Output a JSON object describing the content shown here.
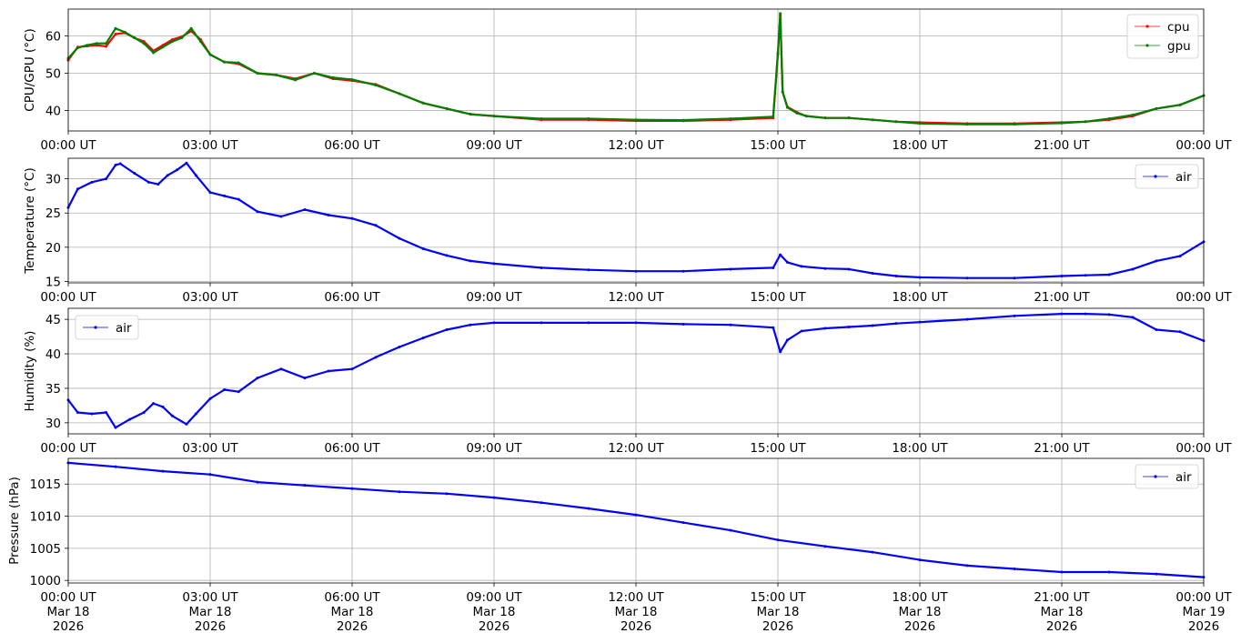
{
  "chart_data": [
    {
      "type": "line",
      "ylabel": "CPU/GPU (°C)",
      "ylim": [
        34.5,
        67.2
      ],
      "xlim": [
        "2026-03-18 00:00",
        "2026-03-19 00:00"
      ],
      "y_ticks": [
        40,
        50,
        60
      ],
      "x_tick_labels": [
        "00:00 UT",
        "03:00 UT",
        "06:00 UT",
        "09:00 UT",
        "12:00 UT",
        "15:00 UT",
        "18:00 UT",
        "21:00 UT",
        "00:00 UT"
      ],
      "grid": true,
      "legend": "top-right",
      "series": [
        {
          "name": "cpu",
          "color": "#ff0000",
          "x_hours": [
            0,
            0.2,
            0.4,
            0.6,
            0.8,
            1.0,
            1.2,
            1.4,
            1.6,
            1.8,
            2.0,
            2.2,
            2.4,
            2.6,
            2.8,
            3.0,
            3.3,
            3.6,
            4.0,
            4.4,
            4.8,
            5.2,
            5.6,
            6.0,
            6.5,
            7.0,
            7.5,
            8.0,
            8.5,
            9.0,
            10.0,
            11.0,
            12.0,
            13.0,
            14.0,
            14.9,
            15.0,
            15.05,
            15.1,
            15.2,
            15.4,
            15.6,
            16.0,
            16.5,
            17.0,
            17.5,
            18.0,
            19.0,
            20.0,
            21.0,
            21.5,
            22.0,
            22.5,
            23.0,
            23.5,
            24.0
          ],
          "values": [
            53.5,
            57,
            57.3,
            57.5,
            57.2,
            60.5,
            60.8,
            59.5,
            58.5,
            56,
            57.5,
            59,
            59.8,
            61.3,
            59,
            55,
            53,
            52.5,
            50,
            49.5,
            48.5,
            50,
            48.5,
            48,
            47,
            44.5,
            42,
            40.5,
            39,
            38.5,
            37.5,
            37.5,
            37.2,
            37.2,
            37.5,
            38,
            55,
            65.5,
            45,
            41,
            39.5,
            38.5,
            38,
            38,
            37.5,
            37,
            36.8,
            36.5,
            36.5,
            36.8,
            37,
            37.5,
            38.5,
            40.5,
            41.5,
            44
          ]
        },
        {
          "name": "gpu",
          "color": "#008000",
          "x_hours": [
            0,
            0.2,
            0.4,
            0.6,
            0.8,
            1.0,
            1.2,
            1.4,
            1.6,
            1.8,
            2.0,
            2.2,
            2.4,
            2.6,
            2.8,
            3.0,
            3.3,
            3.6,
            4.0,
            4.4,
            4.8,
            5.2,
            5.6,
            6.0,
            6.5,
            7.0,
            7.5,
            8.0,
            8.5,
            9.0,
            10.0,
            11.0,
            12.0,
            13.0,
            14.0,
            14.9,
            15.0,
            15.05,
            15.1,
            15.2,
            15.4,
            15.6,
            16.0,
            16.5,
            17.0,
            17.5,
            18.0,
            19.0,
            20.0,
            21.0,
            21.5,
            22.0,
            22.5,
            23.0,
            23.5,
            24.0
          ],
          "values": [
            54,
            56.8,
            57.5,
            58,
            58,
            62,
            61,
            59.5,
            58,
            55.5,
            57,
            58.5,
            59.5,
            62,
            58.5,
            55,
            53,
            52.8,
            50,
            49.5,
            48.2,
            50,
            48.8,
            48.3,
            46.8,
            44.5,
            42,
            40.5,
            39,
            38.5,
            37.8,
            37.8,
            37.5,
            37.4,
            37.8,
            38.3,
            55.5,
            66,
            45,
            40.8,
            39.3,
            38.5,
            38,
            38,
            37.5,
            37,
            36.5,
            36.3,
            36.3,
            36.6,
            37,
            37.8,
            38.8,
            40.5,
            41.5,
            44
          ]
        }
      ]
    },
    {
      "type": "line",
      "ylabel": "Temperature (°C)",
      "ylim": [
        14.8,
        33.0
      ],
      "xlim": [
        "2026-03-18 00:00",
        "2026-03-19 00:00"
      ],
      "y_ticks": [
        15,
        20,
        25,
        30
      ],
      "x_tick_labels": [
        "00:00 UT",
        "03:00 UT",
        "06:00 UT",
        "09:00 UT",
        "12:00 UT",
        "15:00 UT",
        "18:00 UT",
        "21:00 UT",
        "00:00 UT"
      ],
      "grid": true,
      "legend": "top-right",
      "series": [
        {
          "name": "air",
          "color": "#0000ff",
          "x_hours": [
            0,
            0.2,
            0.5,
            0.8,
            1.0,
            1.1,
            1.4,
            1.7,
            1.9,
            2.1,
            2.3,
            2.5,
            2.7,
            3.0,
            3.3,
            3.6,
            4.0,
            4.5,
            5.0,
            5.5,
            6.0,
            6.5,
            7.0,
            7.5,
            8.0,
            8.5,
            9.0,
            10.0,
            11.0,
            12.0,
            13.0,
            14.0,
            14.9,
            15.05,
            15.2,
            15.5,
            16.0,
            16.5,
            17.0,
            17.5,
            18.0,
            19.0,
            20.0,
            21.0,
            21.5,
            22.0,
            22.5,
            23.0,
            23.5,
            24.0
          ],
          "values": [
            25.8,
            28.5,
            29.5,
            30,
            32,
            32.2,
            30.8,
            29.5,
            29.2,
            30.5,
            31.3,
            32.3,
            30.5,
            28,
            27.5,
            27,
            25.2,
            24.5,
            25.5,
            24.7,
            24.2,
            23.2,
            21.3,
            19.8,
            18.8,
            18,
            17.6,
            17,
            16.7,
            16.5,
            16.5,
            16.8,
            17,
            18.9,
            17.8,
            17.2,
            16.9,
            16.8,
            16.2,
            15.8,
            15.6,
            15.5,
            15.5,
            15.8,
            15.9,
            16,
            16.8,
            18,
            18.7,
            20.8
          ]
        }
      ]
    },
    {
      "type": "line",
      "ylabel": "Humidity (%)",
      "ylim": [
        28.4,
        46.6
      ],
      "xlim": [
        "2026-03-18 00:00",
        "2026-03-19 00:00"
      ],
      "y_ticks": [
        30,
        35,
        40,
        45
      ],
      "x_tick_labels": [
        "00:00 UT",
        "03:00 UT",
        "06:00 UT",
        "09:00 UT",
        "12:00 UT",
        "15:00 UT",
        "18:00 UT",
        "21:00 UT",
        "00:00 UT"
      ],
      "grid": true,
      "legend": "top-left",
      "series": [
        {
          "name": "air",
          "color": "#0000ff",
          "x_hours": [
            0,
            0.2,
            0.5,
            0.8,
            1.0,
            1.3,
            1.6,
            1.8,
            2.0,
            2.2,
            2.5,
            2.7,
            3.0,
            3.3,
            3.6,
            4.0,
            4.5,
            5.0,
            5.5,
            6.0,
            6.5,
            7.0,
            7.5,
            8.0,
            8.5,
            9.0,
            10.0,
            11.0,
            12.0,
            13.0,
            14.0,
            14.9,
            15.05,
            15.2,
            15.5,
            16.0,
            16.5,
            17.0,
            17.5,
            18.0,
            19.0,
            20.0,
            21.0,
            21.5,
            22.0,
            22.5,
            23.0,
            23.5,
            24.0
          ],
          "values": [
            33.3,
            31.5,
            31.3,
            31.5,
            29.3,
            30.5,
            31.5,
            32.8,
            32.3,
            31,
            29.8,
            31.3,
            33.5,
            34.8,
            34.5,
            36.5,
            37.8,
            36.5,
            37.5,
            37.8,
            39.5,
            41,
            42.3,
            43.5,
            44.2,
            44.5,
            44.5,
            44.5,
            44.5,
            44.3,
            44.2,
            43.8,
            40.3,
            42,
            43.3,
            43.7,
            43.9,
            44.1,
            44.4,
            44.6,
            45,
            45.5,
            45.8,
            45.8,
            45.7,
            45.3,
            43.5,
            43.2,
            41.9
          ]
        }
      ]
    },
    {
      "type": "line",
      "ylabel": "Pressure (hPa)",
      "ylim": [
        999.6,
        1019.0
      ],
      "xlim": [
        "2026-03-18 00:00",
        "2026-03-19 00:00"
      ],
      "y_ticks": [
        1000,
        1005,
        1010,
        1015
      ],
      "x_tick_labels": [
        "00:00 UT\nMar 18\n2026",
        "03:00 UT\nMar 18\n2026",
        "06:00 UT\nMar 18\n2026",
        "09:00 UT\nMar 18\n2026",
        "12:00 UT\nMar 18\n2026",
        "15:00 UT\nMar 18\n2026",
        "18:00 UT\nMar 18\n2026",
        "21:00 UT\nMar 18\n2026",
        "00:00 UT\nMar 19\n2026"
      ],
      "grid": true,
      "legend": "top-right",
      "series": [
        {
          "name": "air",
          "color": "#0000ff",
          "x_hours": [
            0,
            1,
            2,
            3,
            4,
            5,
            6,
            7,
            8,
            9,
            10,
            11,
            12,
            13,
            14,
            15,
            16,
            17,
            18,
            19,
            20,
            21,
            22,
            23,
            24
          ],
          "values": [
            1018.3,
            1017.7,
            1017,
            1016.5,
            1015.3,
            1014.8,
            1014.3,
            1013.8,
            1013.5,
            1012.9,
            1012.1,
            1011.2,
            1010.2,
            1009,
            1007.8,
            1006.3,
            1005.3,
            1004.4,
            1003.2,
            1002.3,
            1001.8,
            1001.3,
            1001.3,
            1001,
            1000.5
          ]
        }
      ]
    }
  ]
}
